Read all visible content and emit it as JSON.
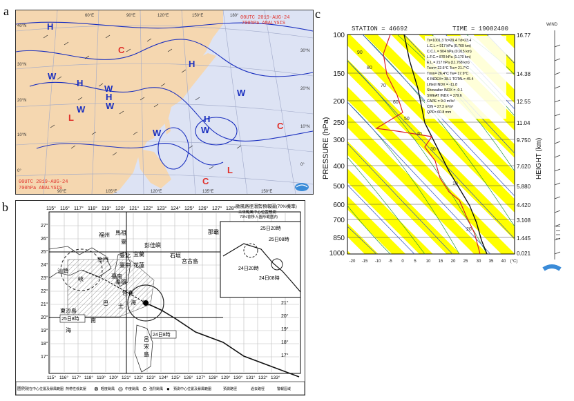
{
  "labels": {
    "a": "a",
    "b": "b",
    "c": "c"
  },
  "panel_a": {
    "title_line1": "00UTC 2019-AUG-24",
    "title_line2": "700hPa ANALYSIS",
    "footer_line1": "00UTC 2019-AUG-24",
    "footer_line2": "700hPa ANALYSIS",
    "lon_top": [
      "60°E",
      "90°E",
      "120°E",
      "150°E",
      "180°"
    ],
    "lon_bottom": [
      "90°E",
      "105°E",
      "120°E",
      "135°E",
      "150°E"
    ],
    "lat_left": [
      "40°N",
      "30°N",
      "20°N",
      "10°N",
      "0°"
    ],
    "lat_right": [
      "30°N",
      "20°N",
      "10°N",
      "0°"
    ],
    "systems": [
      {
        "t": "H",
        "c": "#1a2fbf"
      },
      {
        "t": "W",
        "c": "#1a2fbf"
      },
      {
        "t": "H",
        "c": "#1a2fbf"
      },
      {
        "t": "W",
        "c": "#1a2fbf"
      },
      {
        "t": "W",
        "c": "#1a2fbf"
      },
      {
        "t": "H",
        "c": "#1a2fbf"
      },
      {
        "t": "W",
        "c": "#1a2fbf"
      },
      {
        "t": "H",
        "c": "#1a2fbf"
      },
      {
        "t": "W",
        "c": "#1a2fbf"
      },
      {
        "t": "W",
        "c": "#1a2fbf"
      },
      {
        "t": "H",
        "c": "#1a2fbf"
      },
      {
        "t": "W",
        "c": "#1a2fbf"
      },
      {
        "t": "C",
        "c": "#e0302a"
      },
      {
        "t": "L",
        "c": "#e0302a"
      },
      {
        "t": "C",
        "c": "#e0302a"
      },
      {
        "t": "C",
        "c": "#e0302a"
      },
      {
        "t": "L",
        "c": "#e0302a"
      }
    ]
  },
  "panel_b": {
    "header_title": "颱風路徑潛勢預報圖(70%機率)",
    "header_sub1": "·未來颱風中心位置預測",
    "header_sub2": "70%會移入圓形範圍內",
    "lon": [
      "115°",
      "116°",
      "117°",
      "118°",
      "119°",
      "120°",
      "121°",
      "122°",
      "123°",
      "124°",
      "125°",
      "126°",
      "127°",
      "128°"
    ],
    "lon_bottom": [
      "115°",
      "116°",
      "117°",
      "118°",
      "119°",
      "120°",
      "121°",
      "122°",
      "123°",
      "124°",
      "125°",
      "126°",
      "127°",
      "128°",
      "129°",
      "130°",
      "131°",
      "132°",
      "133°"
    ],
    "lat_left": [
      "27°",
      "26°",
      "25°",
      "24°",
      "23°",
      "22°",
      "21°",
      "20°",
      "19°",
      "18°",
      "17°"
    ],
    "lat_right": [
      "21°",
      "20°",
      "19°",
      "18°",
      "17°"
    ],
    "places": [
      "福州",
      "馬祖",
      "臺",
      "彭佳嶼",
      "臺北",
      "宜蘭",
      "石垣",
      "宮古島",
      "臺中",
      "花蓮",
      "臺南",
      "高雄",
      "恆春",
      "汕頭",
      "峽",
      "東沙島",
      "海",
      "南",
      "巴",
      "士",
      "海",
      "峽",
      "呂",
      "宋",
      "島",
      "那霸",
      "金門"
    ],
    "time_labels": [
      "25日8時",
      "24日8時",
      "25日20時",
      "25日08時",
      "24日20時",
      "24日08時"
    ],
    "legend_head": "圖例",
    "legend_items": [
      "現在中心位置及暴風範圍",
      "熱帶性低氣壓",
      "輕度颱風",
      "中度颱風",
      "強烈颱風",
      "預測中心位置及暴風範圍",
      "預測路徑",
      "過去路徑",
      "警報區域"
    ],
    "legend_symbols": [
      "⊗",
      "◎",
      "⊙",
      "●"
    ]
  },
  "panel_c": {
    "station": "STATION = 46692",
    "time": "TIME = 19082400",
    "wind_label": "WIND",
    "ylabel": "PRESSURE (hPa)",
    "ylabel_right": "HEIGHT (km)",
    "pressure_ticks": [
      "100",
      "150",
      "200",
      "250",
      "300",
      "400",
      "500",
      "600",
      "700",
      "850",
      "1000"
    ],
    "height_ticks": [
      "16.77",
      "14.38",
      "12.55",
      "11.04",
      "9.750",
      "7.620",
      "5.880",
      "4.420",
      "3.108",
      "1.445",
      "0.021"
    ],
    "temp_ticks": [
      "-20",
      "-15",
      "-10",
      "-5",
      "0",
      "5",
      "10",
      "15",
      "20",
      "25",
      "30",
      "35",
      "40"
    ],
    "temp_unit": "(°C)",
    "info_lines": [
      "Ts=1001.3 Tc=29.4 Td=23.4",
      "L.C.L.= 917 hPa (0.769 km)",
      "C.C.L.= 904 hPa (0.915 km)",
      "L.F.C.= 878 hPa (1.170 km)",
      "E.L.= 217 hPa (11.768 km)",
      "Tcon= 22.6°C Tcc= 21.7°C",
      "Tmin= 26.4°C Tw= 17.9°C",
      "K INDEX= 38.1 TOTAL= 45.4",
      "Lifted INDX = -11.8",
      "Showalter INDX = -0.1",
      "SWEAT INDX = 379.6",
      "CAPE = 9.0 m²/s²",
      "CIN = 27.3 m²/s²",
      "QPF= 60.8 mm"
    ],
    "mix_labels": [
      "90",
      "80",
      "70",
      "60",
      "50",
      "40",
      "30",
      "20",
      "10"
    ]
  }
}
